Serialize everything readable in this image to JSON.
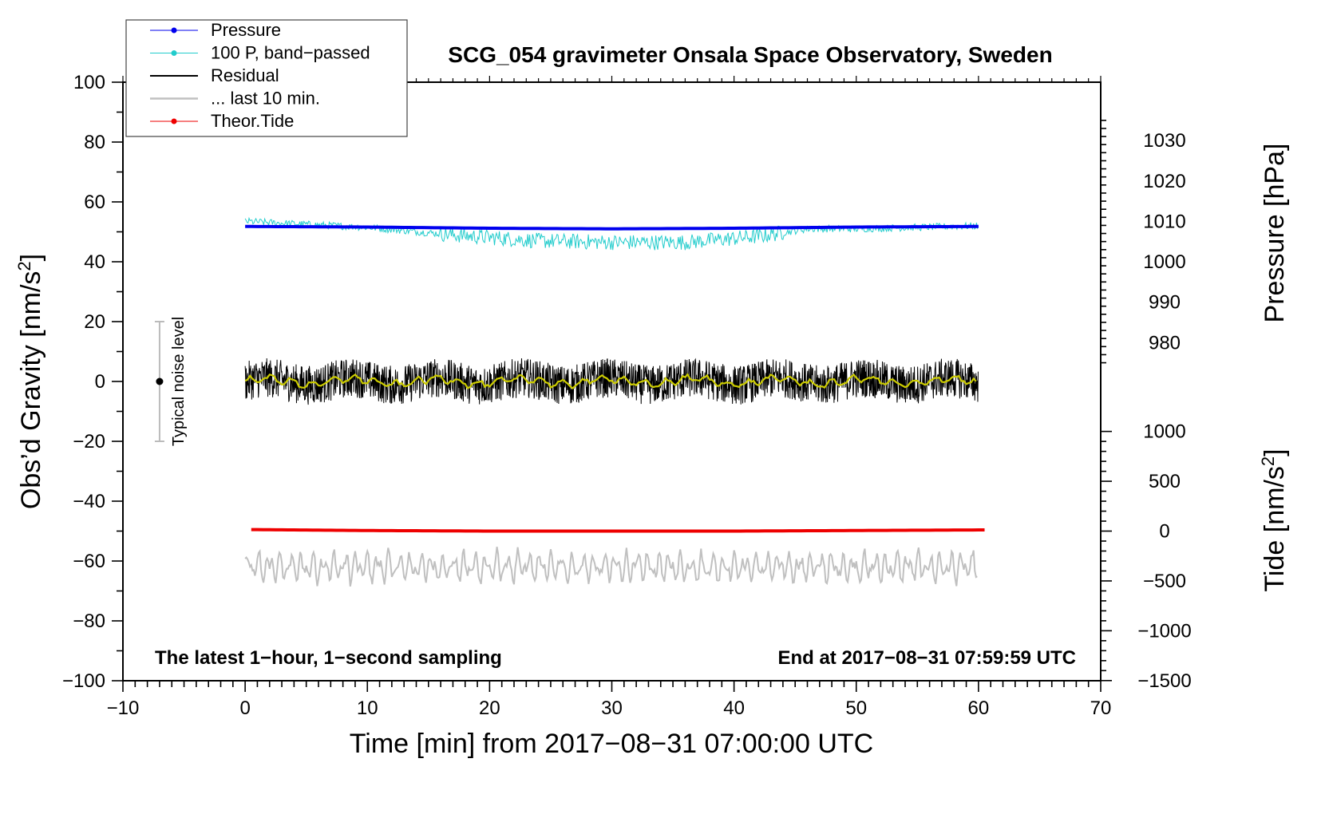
{
  "chart_data": {
    "type": "line",
    "title": "SCG_054 gravimeter Onsala Space Observatory, Sweden",
    "xlabel": "Time [min] from 2017−08−31 07:00:00 UTC",
    "ylabel_left_main": "Obs’d Gravity [nm/s",
    "ylabel_left_sup": "2",
    "ylabel_left_close": "]",
    "ylabel_right_pressure": "Pressure [hPa]",
    "ylabel_right_tide_main": "Tide [nm/s",
    "ylabel_right_tide_sup": "2",
    "ylabel_right_tide_close": "]",
    "xlim": [
      -10,
      70
    ],
    "ylim": [
      -100,
      100
    ],
    "x_ticks": [
      -10,
      0,
      10,
      20,
      30,
      40,
      50,
      60,
      70
    ],
    "x_tick_labels": [
      "−10",
      "0",
      "10",
      "20",
      "30",
      "40",
      "50",
      "60",
      "70"
    ],
    "y_ticks": [
      -100,
      -80,
      -60,
      -40,
      -20,
      0,
      20,
      40,
      60,
      80,
      100
    ],
    "y_tick_labels": [
      "−100",
      "−80",
      "−60",
      "−40",
      "−20",
      "0",
      "20",
      "40",
      "60",
      "80",
      "100"
    ],
    "pressure_axis": {
      "ticks": [
        980,
        990,
        1000,
        1010,
        1020,
        1030
      ],
      "tick_labels": [
        "980",
        "990",
        "1000",
        "1010",
        "1020",
        "1030"
      ],
      "mapping": {
        "p0": 1000,
        "g0": 40,
        "g_per_hPa": 1.35
      }
    },
    "tide_axis": {
      "ticks": [
        -1500,
        -1000,
        -500,
        0,
        500,
        1000
      ],
      "tick_labels": [
        "−1500",
        "−1000",
        "−500",
        "0",
        "500",
        "1000"
      ],
      "mapping": {
        "t0": 0,
        "g0": -50,
        "g_per_unit": 0.0333
      }
    },
    "series": [
      {
        "name": "Pressure",
        "color": "#0000ee",
        "axis": "gravity",
        "x_range": [
          0,
          60
        ],
        "level_points": [
          [
            0,
            51.8
          ],
          [
            10,
            51.6
          ],
          [
            20,
            51.2
          ],
          [
            30,
            51.0
          ],
          [
            40,
            51.2
          ],
          [
            50,
            51.6
          ],
          [
            60,
            51.8
          ]
        ]
      },
      {
        "name": "100 P, band−passed",
        "color": "#22cccc",
        "axis": "gravity",
        "x_range": [
          0,
          60
        ],
        "level_points": [
          [
            0,
            53.5
          ],
          [
            5,
            52.5
          ],
          [
            10,
            51.5
          ],
          [
            17,
            49
          ],
          [
            24,
            47
          ],
          [
            30,
            46.5
          ],
          [
            36,
            46.5
          ],
          [
            42,
            48.5
          ],
          [
            46,
            51
          ],
          [
            50,
            51
          ],
          [
            55,
            51.5
          ],
          [
            60,
            52
          ]
        ]
      },
      {
        "name": "Residual",
        "color": "#000000",
        "axis": "gravity",
        "x_range": [
          0,
          60
        ],
        "mean": 0,
        "noise_amplitude": 6
      },
      {
        "name": "... last 10 min.",
        "color": "#c0c0c0",
        "axis": "gravity",
        "x_range": [
          0,
          60
        ],
        "mean": -62,
        "noise_amplitude": 5
      },
      {
        "name": "Theor.Tide",
        "color": "#ee0000",
        "axis": "gravity",
        "x_range": [
          0.5,
          60.5
        ],
        "level_points": [
          [
            0.5,
            -49.5
          ],
          [
            10,
            -49.8
          ],
          [
            20,
            -50
          ],
          [
            30,
            -50
          ],
          [
            40,
            -50
          ],
          [
            50,
            -49.8
          ],
          [
            60.5,
            -49.6
          ]
        ]
      },
      {
        "name": "Residual smoothed",
        "color": "#cccc00",
        "axis": "gravity",
        "x_range": [
          0,
          60
        ],
        "mean": 0,
        "noise_amplitude": 1.5
      }
    ],
    "legend": {
      "position": "top-left",
      "entries": [
        "Pressure",
        "100 P, band−passed",
        "Residual",
        "... last 10 min.",
        "Theor.Tide"
      ]
    },
    "annotations": {
      "left": "The latest 1−hour, 1−second sampling",
      "right": "End at 2017−08−31 07:59:59 UTC",
      "noise_label": "Typical noise level",
      "noise_bar": {
        "x": -7,
        "y": 0,
        "y_low": -20,
        "y_high": 20
      }
    }
  }
}
